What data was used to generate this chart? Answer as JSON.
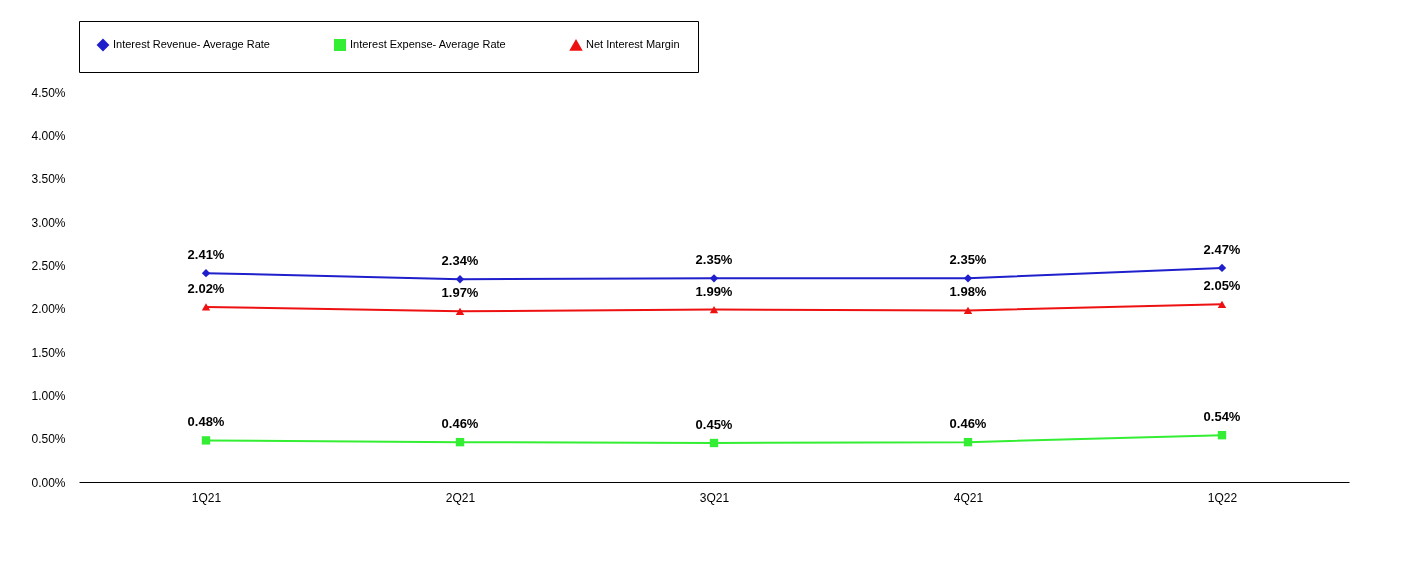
{
  "chart_data": {
    "type": "line",
    "categories": [
      "1Q21",
      "2Q21",
      "3Q21",
      "4Q21",
      "1Q22"
    ],
    "series": [
      {
        "name": "Interest Revenue- Average Rate",
        "color": "#1f1fcc",
        "marker": "diamond",
        "values": [
          2.41,
          2.34,
          2.35,
          2.35,
          2.47
        ],
        "value_labels": [
          "2.41%",
          "2.34%",
          "2.35%",
          "2.35%",
          "2.47%"
        ]
      },
      {
        "name": "Interest Expense- Average Rate",
        "color": "#33ee33",
        "marker": "square",
        "values": [
          0.48,
          0.46,
          0.45,
          0.46,
          0.54
        ],
        "value_labels": [
          "0.48%",
          "0.46%",
          "0.45%",
          "0.46%",
          "0.54%"
        ]
      },
      {
        "name": "Net Interest Margin",
        "color": "#ee1111",
        "marker": "triangle",
        "values": [
          2.02,
          1.97,
          1.99,
          1.98,
          2.05
        ],
        "value_labels": [
          "2.02%",
          "1.97%",
          "1.99%",
          "1.98%",
          "2.05%"
        ]
      }
    ],
    "ylim": [
      0,
      4.5
    ],
    "yticks": [
      {
        "value": 0,
        "label": "0.00%"
      },
      {
        "value": 0.5,
        "label": "0.50%"
      },
      {
        "value": 1,
        "label": "1.00%"
      },
      {
        "value": 1.5,
        "label": "1.50%"
      },
      {
        "value": 2,
        "label": "2.00%"
      },
      {
        "value": 2.5,
        "label": "2.50%"
      },
      {
        "value": 3,
        "label": "3.00%"
      },
      {
        "value": 3.5,
        "label": "3.50%"
      },
      {
        "value": 4,
        "label": "4.00%"
      },
      {
        "value": 4.5,
        "label": "4.50%"
      }
    ],
    "grid": false,
    "legend": "top",
    "line_style": "solid"
  }
}
